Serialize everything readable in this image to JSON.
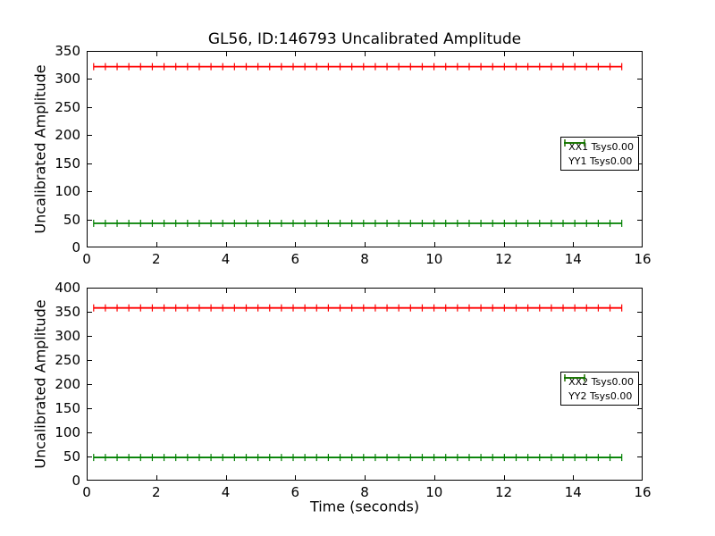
{
  "figure": {
    "background": "#ffffff",
    "frame_color": "#000000"
  },
  "chart_data": [
    {
      "type": "line",
      "title": "GL56, ID:146793 Uncalibrated Amplitude",
      "xlabel": "",
      "ylabel": "Uncalibrated Amplitude",
      "xlim": [
        0,
        16
      ],
      "ylim": [
        0,
        350
      ],
      "xticks": [
        0,
        2,
        4,
        6,
        8,
        10,
        12,
        14,
        16
      ],
      "yticks": [
        0,
        50,
        100,
        150,
        200,
        250,
        300,
        350
      ],
      "grid": false,
      "legend_position": "center right",
      "marker_style": "errorbar-vertical-tick",
      "series": [
        {
          "name": "XX1 Tsys0.00",
          "color": "#ff0000",
          "x_start": 0.2,
          "x_end": 15.4,
          "n_points": 46,
          "y_constant": 322
        },
        {
          "name": "YY1 Tsys0.00",
          "color": "#008000",
          "x_start": 0.2,
          "x_end": 15.4,
          "n_points": 46,
          "y_constant": 43
        }
      ]
    },
    {
      "type": "line",
      "title": "",
      "xlabel": "Time (seconds)",
      "ylabel": "Uncalibrated Amplitude",
      "xlim": [
        0,
        16
      ],
      "ylim": [
        0,
        400
      ],
      "xticks": [
        0,
        2,
        4,
        6,
        8,
        10,
        12,
        14,
        16
      ],
      "yticks": [
        0,
        50,
        100,
        150,
        200,
        250,
        300,
        350,
        400
      ],
      "grid": false,
      "legend_position": "center right",
      "marker_style": "errorbar-vertical-tick",
      "series": [
        {
          "name": "XX2 Tsys0.00",
          "color": "#ff0000",
          "x_start": 0.2,
          "x_end": 15.4,
          "n_points": 46,
          "y_constant": 358
        },
        {
          "name": "YY2 Tsys0.00",
          "color": "#008000",
          "x_start": 0.2,
          "x_end": 15.4,
          "n_points": 46,
          "y_constant": 48
        }
      ]
    }
  ]
}
